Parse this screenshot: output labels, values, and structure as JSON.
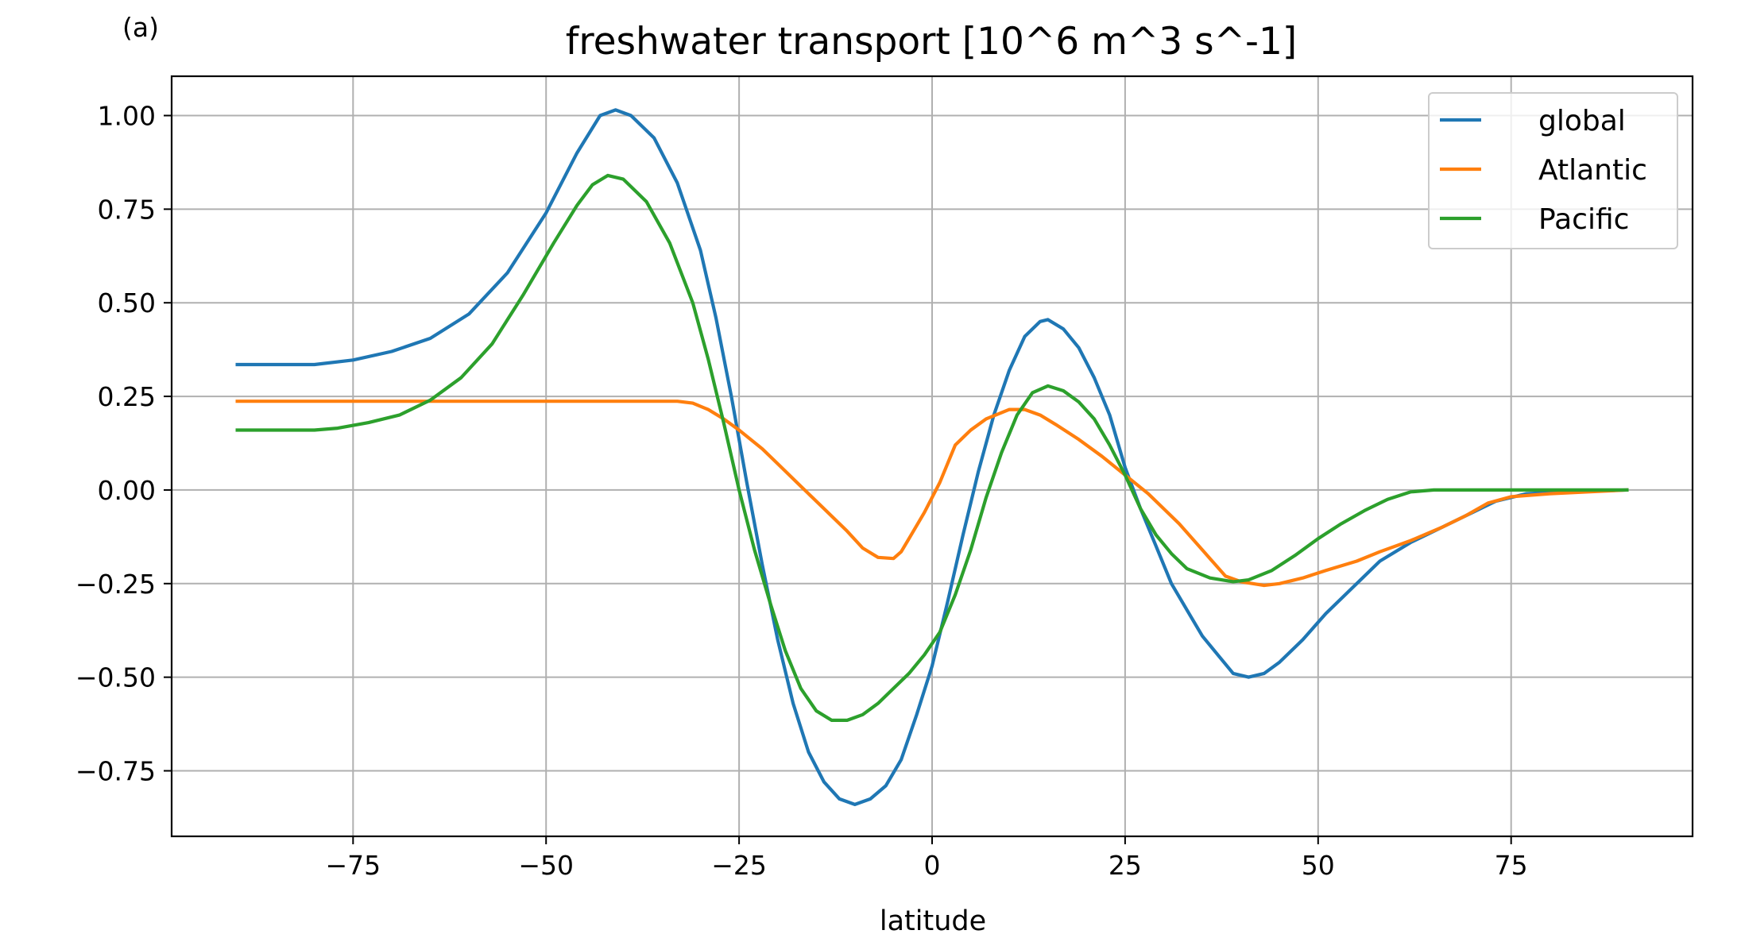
{
  "panel_label": "(a)",
  "chart_data": {
    "type": "line",
    "title": "freshwater transport [10^6 m^3 s^-1]",
    "xlabel": "latitude",
    "ylabel": "",
    "xlim": [
      -98.5,
      98.5
    ],
    "ylim": [
      -0.925,
      1.105
    ],
    "xticks": [
      -75,
      -50,
      -25,
      0,
      25,
      50,
      75
    ],
    "xtick_labels": [
      "−75",
      "−50",
      "−25",
      "0",
      "25",
      "50",
      "75"
    ],
    "yticks": [
      1.0,
      0.75,
      0.5,
      0.25,
      0.0,
      -0.25,
      -0.5,
      -0.75
    ],
    "ytick_labels": [
      "1.00",
      "0.75",
      "0.50",
      "0.25",
      "0.00",
      "−0.25",
      "−0.50",
      "−0.75"
    ],
    "grid": true,
    "legend_position": "top-right",
    "series": [
      {
        "name": "global",
        "color": "#1f77b4",
        "points": [
          [
            -90,
            0.335
          ],
          [
            -80,
            0.335
          ],
          [
            -75,
            0.347
          ],
          [
            -70,
            0.37
          ],
          [
            -65,
            0.405
          ],
          [
            -60,
            0.47
          ],
          [
            -55,
            0.58
          ],
          [
            -50,
            0.74
          ],
          [
            -46,
            0.9
          ],
          [
            -43,
            1.0
          ],
          [
            -41,
            1.015
          ],
          [
            -39,
            1.0
          ],
          [
            -36,
            0.94
          ],
          [
            -33,
            0.82
          ],
          [
            -30,
            0.64
          ],
          [
            -28,
            0.46
          ],
          [
            -26,
            0.25
          ],
          [
            -24,
            0.02
          ],
          [
            -22,
            -0.2
          ],
          [
            -20,
            -0.4
          ],
          [
            -18,
            -0.57
          ],
          [
            -16,
            -0.7
          ],
          [
            -14,
            -0.78
          ],
          [
            -12,
            -0.825
          ],
          [
            -10,
            -0.84
          ],
          [
            -8,
            -0.825
          ],
          [
            -6,
            -0.79
          ],
          [
            -4,
            -0.72
          ],
          [
            -2,
            -0.6
          ],
          [
            0,
            -0.47
          ],
          [
            2,
            -0.3
          ],
          [
            4,
            -0.12
          ],
          [
            6,
            0.05
          ],
          [
            8,
            0.2
          ],
          [
            10,
            0.32
          ],
          [
            12,
            0.41
          ],
          [
            14,
            0.45
          ],
          [
            15,
            0.455
          ],
          [
            17,
            0.43
          ],
          [
            19,
            0.38
          ],
          [
            21,
            0.3
          ],
          [
            23,
            0.2
          ],
          [
            25,
            0.06
          ],
          [
            27,
            -0.05
          ],
          [
            29,
            -0.15
          ],
          [
            31,
            -0.25
          ],
          [
            33,
            -0.32
          ],
          [
            35,
            -0.39
          ],
          [
            37,
            -0.44
          ],
          [
            39,
            -0.49
          ],
          [
            41,
            -0.5
          ],
          [
            43,
            -0.49
          ],
          [
            45,
            -0.46
          ],
          [
            48,
            -0.4
          ],
          [
            51,
            -0.33
          ],
          [
            55,
            -0.25
          ],
          [
            58,
            -0.19
          ],
          [
            62,
            -0.14
          ],
          [
            66,
            -0.1
          ],
          [
            70,
            -0.06
          ],
          [
            73,
            -0.03
          ],
          [
            77,
            -0.01
          ],
          [
            82,
            -0.005
          ],
          [
            90,
            0.0
          ]
        ]
      },
      {
        "name": "Atlantic",
        "color": "#ff7f0e",
        "points": [
          [
            -90,
            0.237
          ],
          [
            -80,
            0.237
          ],
          [
            -70,
            0.237
          ],
          [
            -60,
            0.237
          ],
          [
            -50,
            0.237
          ],
          [
            -40,
            0.237
          ],
          [
            -33,
            0.237
          ],
          [
            -31,
            0.232
          ],
          [
            -29,
            0.215
          ],
          [
            -27,
            0.19
          ],
          [
            -25,
            0.16
          ],
          [
            -22,
            0.11
          ],
          [
            -20,
            0.07
          ],
          [
            -17,
            0.01
          ],
          [
            -14,
            -0.05
          ],
          [
            -11,
            -0.11
          ],
          [
            -9,
            -0.155
          ],
          [
            -7,
            -0.18
          ],
          [
            -5,
            -0.183
          ],
          [
            -4,
            -0.165
          ],
          [
            -3,
            -0.13
          ],
          [
            -1,
            -0.06
          ],
          [
            1,
            0.02
          ],
          [
            3,
            0.12
          ],
          [
            5,
            0.16
          ],
          [
            7,
            0.19
          ],
          [
            10,
            0.215
          ],
          [
            12,
            0.215
          ],
          [
            14,
            0.2
          ],
          [
            16,
            0.175
          ],
          [
            19,
            0.135
          ],
          [
            22,
            0.09
          ],
          [
            25,
            0.04
          ],
          [
            28,
            -0.01
          ],
          [
            32,
            -0.09
          ],
          [
            35,
            -0.16
          ],
          [
            38,
            -0.23
          ],
          [
            40,
            -0.245
          ],
          [
            43,
            -0.255
          ],
          [
            45,
            -0.25
          ],
          [
            48,
            -0.235
          ],
          [
            51,
            -0.215
          ],
          [
            55,
            -0.19
          ],
          [
            58,
            -0.165
          ],
          [
            62,
            -0.135
          ],
          [
            66,
            -0.1
          ],
          [
            69,
            -0.07
          ],
          [
            72,
            -0.035
          ],
          [
            75,
            -0.018
          ],
          [
            80,
            -0.01
          ],
          [
            85,
            -0.005
          ],
          [
            90,
            0.0
          ]
        ]
      },
      {
        "name": "Pacific",
        "color": "#2ca02c",
        "points": [
          [
            -90,
            0.16
          ],
          [
            -80,
            0.16
          ],
          [
            -77,
            0.165
          ],
          [
            -73,
            0.18
          ],
          [
            -69,
            0.2
          ],
          [
            -65,
            0.24
          ],
          [
            -61,
            0.3
          ],
          [
            -57,
            0.39
          ],
          [
            -53,
            0.52
          ],
          [
            -49,
            0.66
          ],
          [
            -46,
            0.76
          ],
          [
            -44,
            0.815
          ],
          [
            -42,
            0.84
          ],
          [
            -40,
            0.83
          ],
          [
            -37,
            0.77
          ],
          [
            -34,
            0.66
          ],
          [
            -31,
            0.5
          ],
          [
            -29,
            0.35
          ],
          [
            -27,
            0.18
          ],
          [
            -25,
            0.0
          ],
          [
            -23,
            -0.16
          ],
          [
            -21,
            -0.3
          ],
          [
            -19,
            -0.43
          ],
          [
            -17,
            -0.53
          ],
          [
            -15,
            -0.59
          ],
          [
            -13,
            -0.615
          ],
          [
            -11,
            -0.615
          ],
          [
            -9,
            -0.6
          ],
          [
            -7,
            -0.57
          ],
          [
            -5,
            -0.53
          ],
          [
            -3,
            -0.49
          ],
          [
            -1,
            -0.44
          ],
          [
            1,
            -0.38
          ],
          [
            3,
            -0.28
          ],
          [
            5,
            -0.16
          ],
          [
            7,
            -0.02
          ],
          [
            9,
            0.1
          ],
          [
            11,
            0.2
          ],
          [
            13,
            0.26
          ],
          [
            15,
            0.278
          ],
          [
            17,
            0.265
          ],
          [
            19,
            0.235
          ],
          [
            21,
            0.19
          ],
          [
            23,
            0.12
          ],
          [
            25,
            0.04
          ],
          [
            27,
            -0.05
          ],
          [
            29,
            -0.12
          ],
          [
            31,
            -0.17
          ],
          [
            33,
            -0.21
          ],
          [
            36,
            -0.235
          ],
          [
            39,
            -0.245
          ],
          [
            41,
            -0.24
          ],
          [
            44,
            -0.215
          ],
          [
            47,
            -0.175
          ],
          [
            50,
            -0.13
          ],
          [
            53,
            -0.09
          ],
          [
            56,
            -0.055
          ],
          [
            59,
            -0.025
          ],
          [
            62,
            -0.005
          ],
          [
            65,
            0.0
          ],
          [
            70,
            0.0
          ],
          [
            80,
            0.0
          ],
          [
            90,
            0.0
          ]
        ]
      }
    ]
  }
}
